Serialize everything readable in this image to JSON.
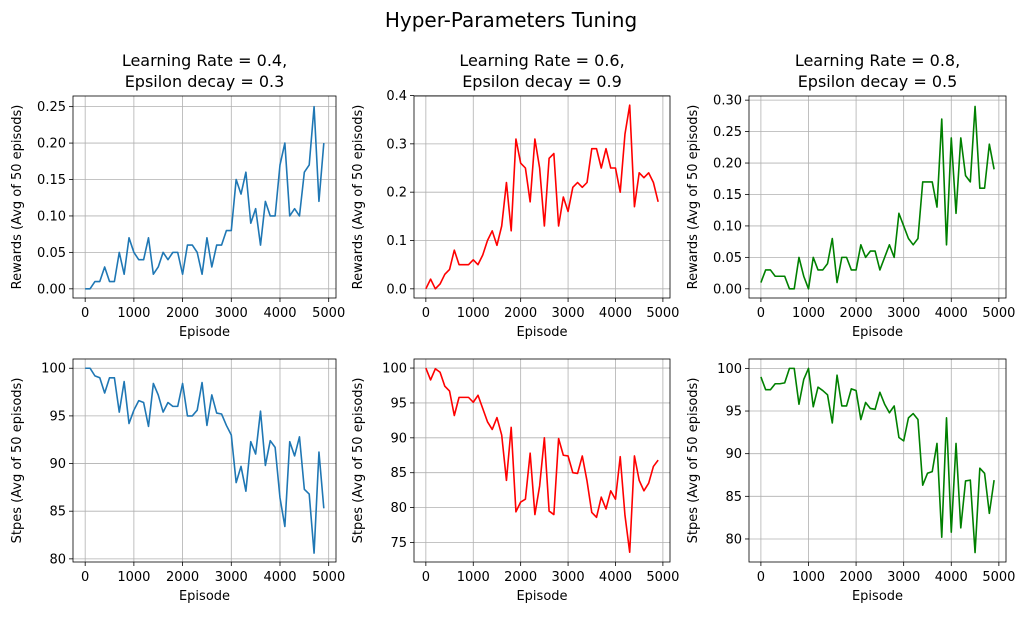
{
  "suptitle": "Hyper-Parameters Tuning",
  "chart_data": [
    {
      "type": "line",
      "title_line1": "Learning Rate = 0.4,",
      "title_line2": "Epsilon decay = 0.3",
      "xlabel": "Episode",
      "ylabel": "Rewards (Avg of 50 episods)",
      "color": "#1f77b4",
      "xlim": [
        -250,
        5150
      ],
      "ylim": [
        -0.0126,
        0.2646
      ],
      "xticks": [
        0,
        1000,
        2000,
        3000,
        4000,
        5000
      ],
      "yticks": [
        0.0,
        0.05,
        0.1,
        0.15,
        0.2,
        0.25
      ],
      "ytick_labels": [
        "0.00",
        "0.05",
        "0.10",
        "0.15",
        "0.20",
        "0.25"
      ],
      "grid": true,
      "x": [
        0,
        100,
        200,
        300,
        400,
        500,
        600,
        700,
        800,
        900,
        1000,
        1100,
        1200,
        1300,
        1400,
        1500,
        1600,
        1700,
        1800,
        1900,
        2000,
        2100,
        2200,
        2300,
        2400,
        2500,
        2600,
        2700,
        2800,
        2900,
        3000,
        3100,
        3200,
        3300,
        3400,
        3500,
        3600,
        3700,
        3800,
        3900,
        4000,
        4100,
        4200,
        4300,
        4400,
        4500,
        4600,
        4700,
        4800,
        4900
      ],
      "y": [
        0,
        0,
        0.01,
        0.01,
        0.03,
        0.01,
        0.01,
        0.05,
        0.02,
        0.07,
        0.05,
        0.04,
        0.04,
        0.07,
        0.02,
        0.03,
        0.05,
        0.04,
        0.05,
        0.05,
        0.02,
        0.06,
        0.06,
        0.05,
        0.02,
        0.07,
        0.03,
        0.06,
        0.06,
        0.08,
        0.08,
        0.15,
        0.13,
        0.16,
        0.09,
        0.11,
        0.06,
        0.12,
        0.1,
        0.1,
        0.17,
        0.2,
        0.1,
        0.11,
        0.1,
        0.16,
        0.17,
        0.25,
        0.12,
        0.2
      ]
    },
    {
      "type": "line",
      "title_line1": "Learning Rate = 0.6,",
      "title_line2": "Epsilon decay = 0.9",
      "xlabel": "Episode",
      "ylabel": "Rewards (Avg of 50 episods)",
      "color": "#ff0000",
      "xlim": [
        -250,
        5150
      ],
      "ylim": [
        -0.019,
        0.399
      ],
      "xticks": [
        0,
        1000,
        2000,
        3000,
        4000,
        5000
      ],
      "yticks": [
        0.0,
        0.1,
        0.2,
        0.3,
        0.4
      ],
      "ytick_labels": [
        "0.0",
        "0.1",
        "0.2",
        "0.3",
        "0.4"
      ],
      "grid": true,
      "x": [
        0,
        100,
        200,
        300,
        400,
        500,
        600,
        700,
        800,
        900,
        1000,
        1100,
        1200,
        1300,
        1400,
        1500,
        1600,
        1700,
        1800,
        1900,
        2000,
        2100,
        2200,
        2300,
        2400,
        2500,
        2600,
        2700,
        2800,
        2900,
        3000,
        3100,
        3200,
        3300,
        3400,
        3500,
        3600,
        3700,
        3800,
        3900,
        4000,
        4100,
        4200,
        4300,
        4400,
        4500,
        4600,
        4700,
        4800,
        4900
      ],
      "y": [
        0,
        0.02,
        0,
        0.01,
        0.03,
        0.04,
        0.08,
        0.05,
        0.05,
        0.05,
        0.06,
        0.05,
        0.07,
        0.1,
        0.12,
        0.09,
        0.13,
        0.22,
        0.12,
        0.31,
        0.26,
        0.25,
        0.18,
        0.31,
        0.25,
        0.13,
        0.27,
        0.28,
        0.13,
        0.19,
        0.16,
        0.21,
        0.22,
        0.21,
        0.22,
        0.29,
        0.29,
        0.25,
        0.29,
        0.25,
        0.25,
        0.2,
        0.32,
        0.38,
        0.17,
        0.24,
        0.23,
        0.24,
        0.22,
        0.18
      ]
    },
    {
      "type": "line",
      "title_line1": "Learning Rate = 0.8,",
      "title_line2": "Epsilon decay = 0.5",
      "xlabel": "Episode",
      "ylabel": "Rewards (Avg of 50 episods)",
      "color": "#008000",
      "xlim": [
        -250,
        5150
      ],
      "ylim": [
        -0.0146,
        0.3066
      ],
      "xticks": [
        0,
        1000,
        2000,
        3000,
        4000,
        5000
      ],
      "yticks": [
        0.0,
        0.05,
        0.1,
        0.15,
        0.2,
        0.25,
        0.3
      ],
      "ytick_labels": [
        "0.00",
        "0.05",
        "0.10",
        "0.15",
        "0.20",
        "0.25",
        "0.30"
      ],
      "grid": true,
      "x": [
        0,
        100,
        200,
        300,
        400,
        500,
        600,
        700,
        800,
        900,
        1000,
        1100,
        1200,
        1300,
        1400,
        1500,
        1600,
        1700,
        1800,
        1900,
        2000,
        2100,
        2200,
        2300,
        2400,
        2500,
        2600,
        2700,
        2800,
        2900,
        3000,
        3100,
        3200,
        3300,
        3400,
        3500,
        3600,
        3700,
        3800,
        3900,
        4000,
        4100,
        4200,
        4300,
        4400,
        4500,
        4600,
        4700,
        4800,
        4900
      ],
      "y": [
        0.01,
        0.03,
        0.03,
        0.02,
        0.02,
        0.02,
        0,
        0,
        0.05,
        0.02,
        0,
        0.05,
        0.03,
        0.03,
        0.04,
        0.08,
        0.01,
        0.05,
        0.05,
        0.03,
        0.03,
        0.07,
        0.05,
        0.06,
        0.06,
        0.03,
        0.05,
        0.07,
        0.05,
        0.12,
        0.1,
        0.08,
        0.07,
        0.08,
        0.17,
        0.17,
        0.17,
        0.13,
        0.27,
        0.07,
        0.24,
        0.12,
        0.24,
        0.18,
        0.17,
        0.29,
        0.16,
        0.16,
        0.23,
        0.19
      ]
    },
    {
      "type": "line",
      "title_line1": "",
      "title_line2": "",
      "xlabel": "Episode",
      "ylabel": "Stpes (Avg of 50 episods)",
      "color": "#1f77b4",
      "xlim": [
        -250,
        5150
      ],
      "ylim": [
        79.67,
        100.97
      ],
      "xticks": [
        0,
        1000,
        2000,
        3000,
        4000,
        5000
      ],
      "yticks": [
        80,
        85,
        90,
        95,
        100
      ],
      "ytick_labels": [
        "80",
        "85",
        "90",
        "95",
        "100"
      ],
      "grid": true,
      "x": [
        0,
        100,
        200,
        300,
        400,
        500,
        600,
        700,
        800,
        900,
        1000,
        1100,
        1200,
        1300,
        1400,
        1500,
        1600,
        1700,
        1800,
        1900,
        2000,
        2100,
        2200,
        2300,
        2400,
        2500,
        2600,
        2700,
        2800,
        2900,
        3000,
        3100,
        3200,
        3300,
        3400,
        3500,
        3600,
        3700,
        3800,
        3900,
        4000,
        4100,
        4200,
        4300,
        4400,
        4500,
        4600,
        4700,
        4800,
        4900
      ],
      "y": [
        100,
        100,
        99.2,
        99,
        97.4,
        99,
        99,
        95.4,
        98.6,
        94.2,
        95.6,
        96.6,
        96.4,
        93.9,
        98.4,
        97.2,
        95.4,
        96.4,
        96,
        96,
        98.4,
        95,
        95,
        95.6,
        98.5,
        94,
        97.2,
        95.3,
        95.2,
        94,
        93,
        88,
        89.7,
        87.1,
        92.3,
        91,
        95.5,
        89.8,
        92.4,
        91.7,
        86.4,
        83.4,
        92.3,
        90.8,
        92.8,
        87.3,
        86.8,
        80.6,
        91.2,
        85.3
      ]
    },
    {
      "type": "line",
      "title_line1": "",
      "title_line2": "",
      "xlabel": "Episode",
      "ylabel": "Stpes (Avg of 50 episods)",
      "color": "#ff0000",
      "xlim": [
        -250,
        5150
      ],
      "ylim": [
        72.2,
        101.3
      ],
      "xticks": [
        0,
        1000,
        2000,
        3000,
        4000,
        5000
      ],
      "yticks": [
        75,
        80,
        85,
        90,
        95,
        100
      ],
      "ytick_labels": [
        "75",
        "80",
        "85",
        "90",
        "95",
        "100"
      ],
      "grid": true,
      "x": [
        0,
        100,
        200,
        300,
        400,
        500,
        600,
        700,
        800,
        900,
        1000,
        1100,
        1200,
        1300,
        1400,
        1500,
        1600,
        1700,
        1800,
        1900,
        2000,
        2100,
        2200,
        2300,
        2400,
        2500,
        2600,
        2700,
        2800,
        2900,
        3000,
        3100,
        3200,
        3300,
        3400,
        3500,
        3600,
        3700,
        3800,
        3900,
        4000,
        4100,
        4200,
        4300,
        4400,
        4500,
        4600,
        4700,
        4800,
        4900
      ],
      "y": [
        100,
        98.3,
        99.9,
        99.4,
        97.4,
        96.7,
        93.2,
        95.8,
        95.8,
        95.8,
        95.1,
        96.1,
        94.2,
        92.3,
        91.2,
        92.9,
        90.4,
        83.9,
        91.5,
        79.4,
        80.8,
        81.2,
        87.8,
        79,
        83.1,
        90,
        79.5,
        79,
        89.9,
        87.5,
        87.4,
        85,
        84.9,
        87.4,
        83.8,
        79.3,
        78.6,
        81.5,
        79.8,
        82.4,
        81.2,
        87.3,
        78.9,
        73.6,
        87.4,
        83.9,
        82.4,
        83.5,
        85.9,
        86.8
      ]
    },
    {
      "type": "line",
      "title_line1": "",
      "title_line2": "",
      "xlabel": "Episode",
      "ylabel": "Stpes (Avg of 50 episods)",
      "color": "#008000",
      "xlim": [
        -250,
        5150
      ],
      "ylim": [
        77.3,
        101.1
      ],
      "xticks": [
        0,
        1000,
        2000,
        3000,
        4000,
        5000
      ],
      "yticks": [
        80,
        85,
        90,
        95,
        100
      ],
      "ytick_labels": [
        "80",
        "85",
        "90",
        "95",
        "100"
      ],
      "grid": true,
      "x": [
        0,
        100,
        200,
        300,
        400,
        500,
        600,
        700,
        800,
        900,
        1000,
        1100,
        1200,
        1300,
        1400,
        1500,
        1600,
        1700,
        1800,
        1900,
        2000,
        2100,
        2200,
        2300,
        2400,
        2500,
        2600,
        2700,
        2800,
        2900,
        3000,
        3100,
        3200,
        3300,
        3400,
        3500,
        3600,
        3700,
        3800,
        3900,
        4000,
        4100,
        4200,
        4300,
        4400,
        4500,
        4600,
        4700,
        4800,
        4900
      ],
      "y": [
        99,
        97.5,
        97.5,
        98.2,
        98.2,
        98.3,
        100,
        100,
        95.8,
        98.7,
        100,
        95.5,
        97.8,
        97.4,
        96.9,
        93.6,
        99.2,
        95.6,
        95.6,
        97.6,
        97.4,
        94,
        96,
        95.3,
        95.2,
        97.2,
        95.8,
        94.8,
        95.6,
        91.9,
        91.5,
        94.2,
        94.7,
        94,
        86.3,
        87.7,
        87.9,
        91.2,
        80.2,
        94.2,
        80.8,
        91.2,
        81.3,
        86.8,
        86.9,
        78.4,
        88.3,
        87.7,
        83,
        86.9
      ]
    }
  ]
}
